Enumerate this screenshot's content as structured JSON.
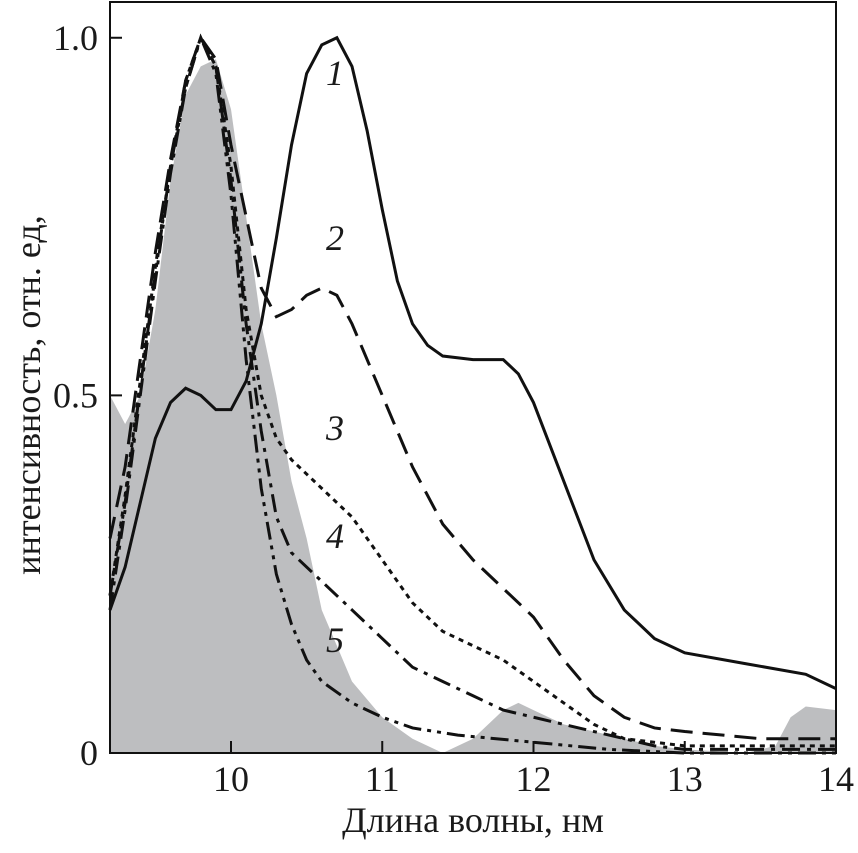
{
  "chart_data": {
    "type": "line",
    "x_label": "Длина волны, нм",
    "y_label": "интенсивность, отн. ед,",
    "xlim": [
      9.2,
      14
    ],
    "ylim": [
      0,
      1.05
    ],
    "xticks": [
      10,
      11,
      12,
      13,
      14
    ],
    "yticks": [
      0,
      0.5,
      {
        "value": 1,
        "label": "1.0"
      }
    ],
    "grid": false,
    "area": {
      "color": "#bdbec0",
      "x": [
        9.2,
        9.3,
        9.4,
        9.5,
        9.6,
        9.7,
        9.8,
        9.9,
        10.0,
        10.1,
        10.2,
        10.3,
        10.4,
        10.5,
        10.6,
        10.8,
        11.0,
        11.2,
        11.4,
        11.6,
        11.8,
        11.9,
        12.0,
        12.2,
        12.4,
        12.6,
        12.8,
        13.0,
        13.4,
        13.6,
        13.7,
        13.8,
        14.0
      ],
      "values": [
        0.5,
        0.46,
        0.5,
        0.62,
        0.8,
        0.92,
        0.96,
        0.97,
        0.9,
        0.75,
        0.6,
        0.5,
        0.38,
        0.3,
        0.2,
        0.1,
        0.05,
        0.02,
        0.0,
        0.02,
        0.06,
        0.07,
        0.06,
        0.04,
        0.03,
        0.02,
        0.01,
        0.005,
        0.0,
        0.01,
        0.05,
        0.065,
        0.06
      ]
    },
    "series": [
      {
        "name": "1",
        "color": "#111111",
        "dash": "solid",
        "x": [
          9.2,
          9.3,
          9.4,
          9.5,
          9.6,
          9.7,
          9.8,
          9.9,
          10.0,
          10.1,
          10.2,
          10.3,
          10.4,
          10.5,
          10.6,
          10.7,
          10.8,
          10.9,
          11.0,
          11.1,
          11.2,
          11.3,
          11.4,
          11.6,
          11.8,
          11.9,
          12.0,
          12.2,
          12.4,
          12.6,
          12.8,
          13.0,
          13.4,
          13.8,
          14.0
        ],
        "values": [
          0.2,
          0.26,
          0.35,
          0.44,
          0.49,
          0.51,
          0.5,
          0.48,
          0.48,
          0.52,
          0.6,
          0.72,
          0.85,
          0.95,
          0.99,
          1.0,
          0.96,
          0.87,
          0.76,
          0.66,
          0.6,
          0.57,
          0.555,
          0.55,
          0.55,
          0.53,
          0.49,
          0.38,
          0.27,
          0.2,
          0.16,
          0.14,
          0.125,
          0.11,
          0.09
        ]
      },
      {
        "name": "2",
        "color": "#111111",
        "dash": "dashed",
        "x": [
          9.2,
          9.3,
          9.4,
          9.5,
          9.6,
          9.7,
          9.8,
          9.9,
          10.0,
          10.1,
          10.2,
          10.3,
          10.4,
          10.5,
          10.6,
          10.7,
          10.8,
          11.0,
          11.2,
          11.4,
          11.6,
          11.8,
          12.0,
          12.2,
          12.4,
          12.6,
          12.8,
          13.0,
          13.5,
          14.0
        ],
        "values": [
          0.3,
          0.4,
          0.55,
          0.7,
          0.83,
          0.94,
          1.0,
          0.97,
          0.85,
          0.75,
          0.65,
          0.61,
          0.62,
          0.64,
          0.65,
          0.64,
          0.6,
          0.5,
          0.4,
          0.32,
          0.27,
          0.23,
          0.19,
          0.13,
          0.08,
          0.05,
          0.035,
          0.03,
          0.02,
          0.02
        ]
      },
      {
        "name": "3",
        "color": "#111111",
        "dash": "dotted",
        "x": [
          9.2,
          9.3,
          9.4,
          9.5,
          9.6,
          9.7,
          9.8,
          9.9,
          10.0,
          10.1,
          10.2,
          10.3,
          10.4,
          10.5,
          10.6,
          10.8,
          11.0,
          11.2,
          11.4,
          11.6,
          11.8,
          12.0,
          12.2,
          12.4,
          12.6,
          13.0,
          14.0
        ],
        "values": [
          0.22,
          0.36,
          0.52,
          0.68,
          0.82,
          0.94,
          1.0,
          0.96,
          0.82,
          0.62,
          0.5,
          0.44,
          0.41,
          0.39,
          0.37,
          0.33,
          0.27,
          0.21,
          0.17,
          0.15,
          0.13,
          0.1,
          0.07,
          0.04,
          0.02,
          0.01,
          0.01
        ]
      },
      {
        "name": "4",
        "color": "#111111",
        "dash": "dashdot",
        "x": [
          9.2,
          9.3,
          9.4,
          9.5,
          9.6,
          9.7,
          9.8,
          9.9,
          10.0,
          10.1,
          10.2,
          10.3,
          10.4,
          10.6,
          10.8,
          11.0,
          11.2,
          11.4,
          11.6,
          11.8,
          12.0,
          12.4,
          12.8,
          13.0,
          14.0
        ],
        "values": [
          0.2,
          0.34,
          0.5,
          0.66,
          0.81,
          0.93,
          1.0,
          0.96,
          0.8,
          0.6,
          0.45,
          0.33,
          0.28,
          0.24,
          0.2,
          0.16,
          0.12,
          0.1,
          0.08,
          0.06,
          0.05,
          0.03,
          0.01,
          0.005,
          0.005
        ]
      },
      {
        "name": "5",
        "color": "#111111",
        "dash": "dashdotdot",
        "x": [
          9.2,
          9.3,
          9.4,
          9.5,
          9.6,
          9.7,
          9.8,
          9.9,
          10.0,
          10.1,
          10.2,
          10.3,
          10.4,
          10.5,
          10.6,
          10.8,
          11.0,
          11.2,
          11.5,
          12.0,
          12.5,
          13.0,
          14.0
        ],
        "values": [
          0.22,
          0.35,
          0.51,
          0.67,
          0.82,
          0.93,
          1.0,
          0.95,
          0.78,
          0.55,
          0.37,
          0.25,
          0.18,
          0.13,
          0.1,
          0.07,
          0.05,
          0.035,
          0.025,
          0.015,
          0.005,
          0.0,
          0.0
        ]
      }
    ]
  }
}
